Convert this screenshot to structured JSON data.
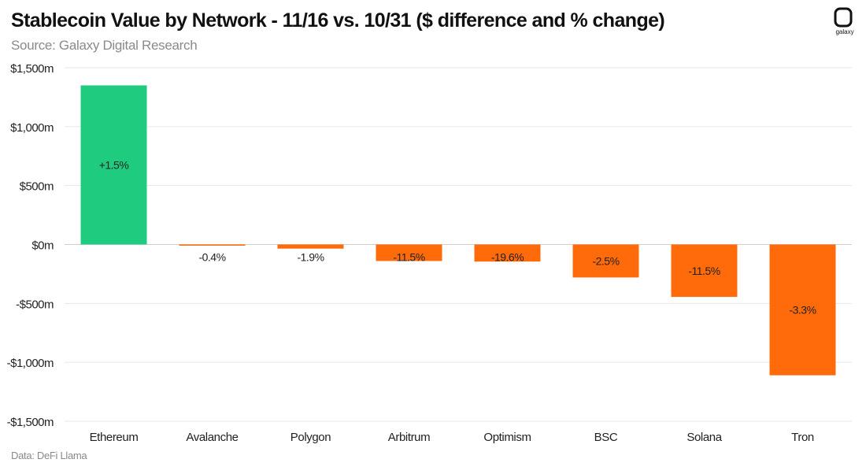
{
  "header": {
    "title": "Stablecoin Value by Network - 11/16 vs. 10/31 ($ difference and % change)",
    "subtitle": "Source: Galaxy Digital Research",
    "logo_word": "galaxy"
  },
  "footer": {
    "note": "Data: DeFi Llama"
  },
  "colors": {
    "positive": "#1fcc7f",
    "negative": "#ff6b0a",
    "grid": "#e6e6e6",
    "zero_line": "#cfcfcf",
    "text": "#222222"
  },
  "chart_data": {
    "type": "bar",
    "title": "Stablecoin Value by Network - 11/16 vs. 10/31 ($ difference and % change)",
    "categories": [
      "Ethereum",
      "Avalanche",
      "Polygon",
      "Arbitrum",
      "Optimism",
      "BSC",
      "Solana",
      "Tron"
    ],
    "values": [
      1350,
      -10,
      -35,
      -140,
      -145,
      -280,
      -445,
      -1110
    ],
    "value_labels": [
      "+1.5%",
      "-0.4%",
      "-1.9%",
      "-11.5%",
      "-19.6%",
      "-2.5%",
      "-11.5%",
      "-3.3%"
    ],
    "y_ticks": [
      1500,
      1000,
      500,
      0,
      -500,
      -1000,
      -1500
    ],
    "y_tick_labels": [
      "$1,500m",
      "$1,000m",
      "$500m",
      "$0m",
      "-$500m",
      "-$1,000m",
      "-$1,500m"
    ],
    "ylim": [
      -1500,
      1500
    ],
    "xlabel": "",
    "ylabel": "",
    "grid": true,
    "legend": "none"
  }
}
